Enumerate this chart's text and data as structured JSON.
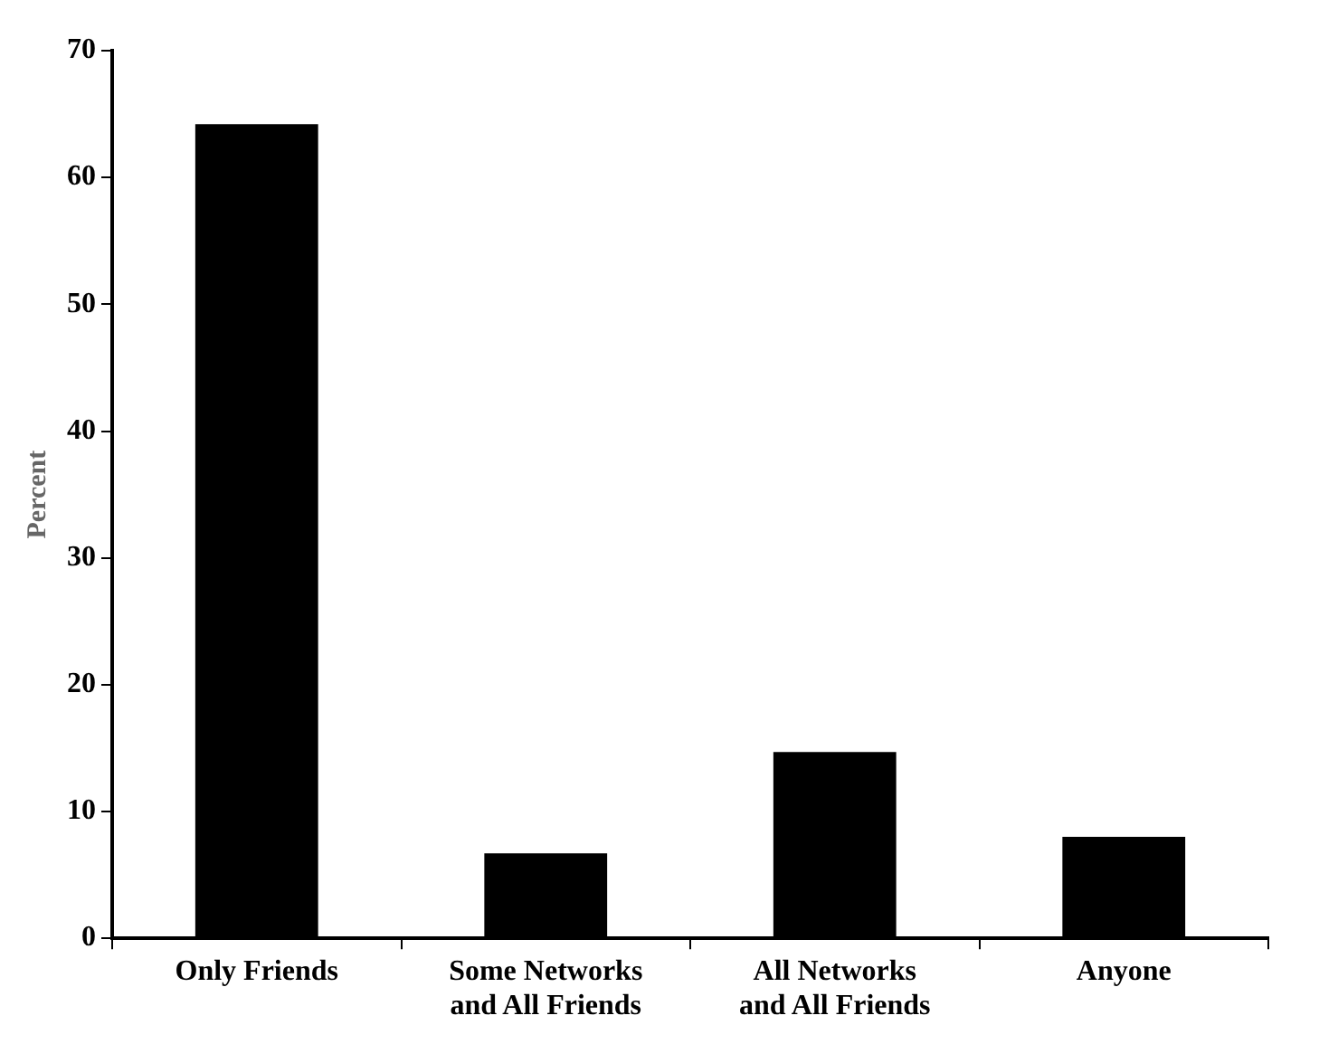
{
  "chart_data": {
    "type": "bar",
    "ylabel": "Percent",
    "categories": [
      "Only Friends",
      "Some Networks and All Friends",
      "All Networks and All Friends",
      "Anyone"
    ],
    "values": [
      64.2,
      6.7,
      14.7,
      8.0
    ],
    "color": "#000000",
    "ylim": [
      0,
      70
    ],
    "yticks": [
      0,
      10,
      20,
      30,
      40,
      50,
      60,
      70
    ],
    "grid": false,
    "legend": false
  }
}
